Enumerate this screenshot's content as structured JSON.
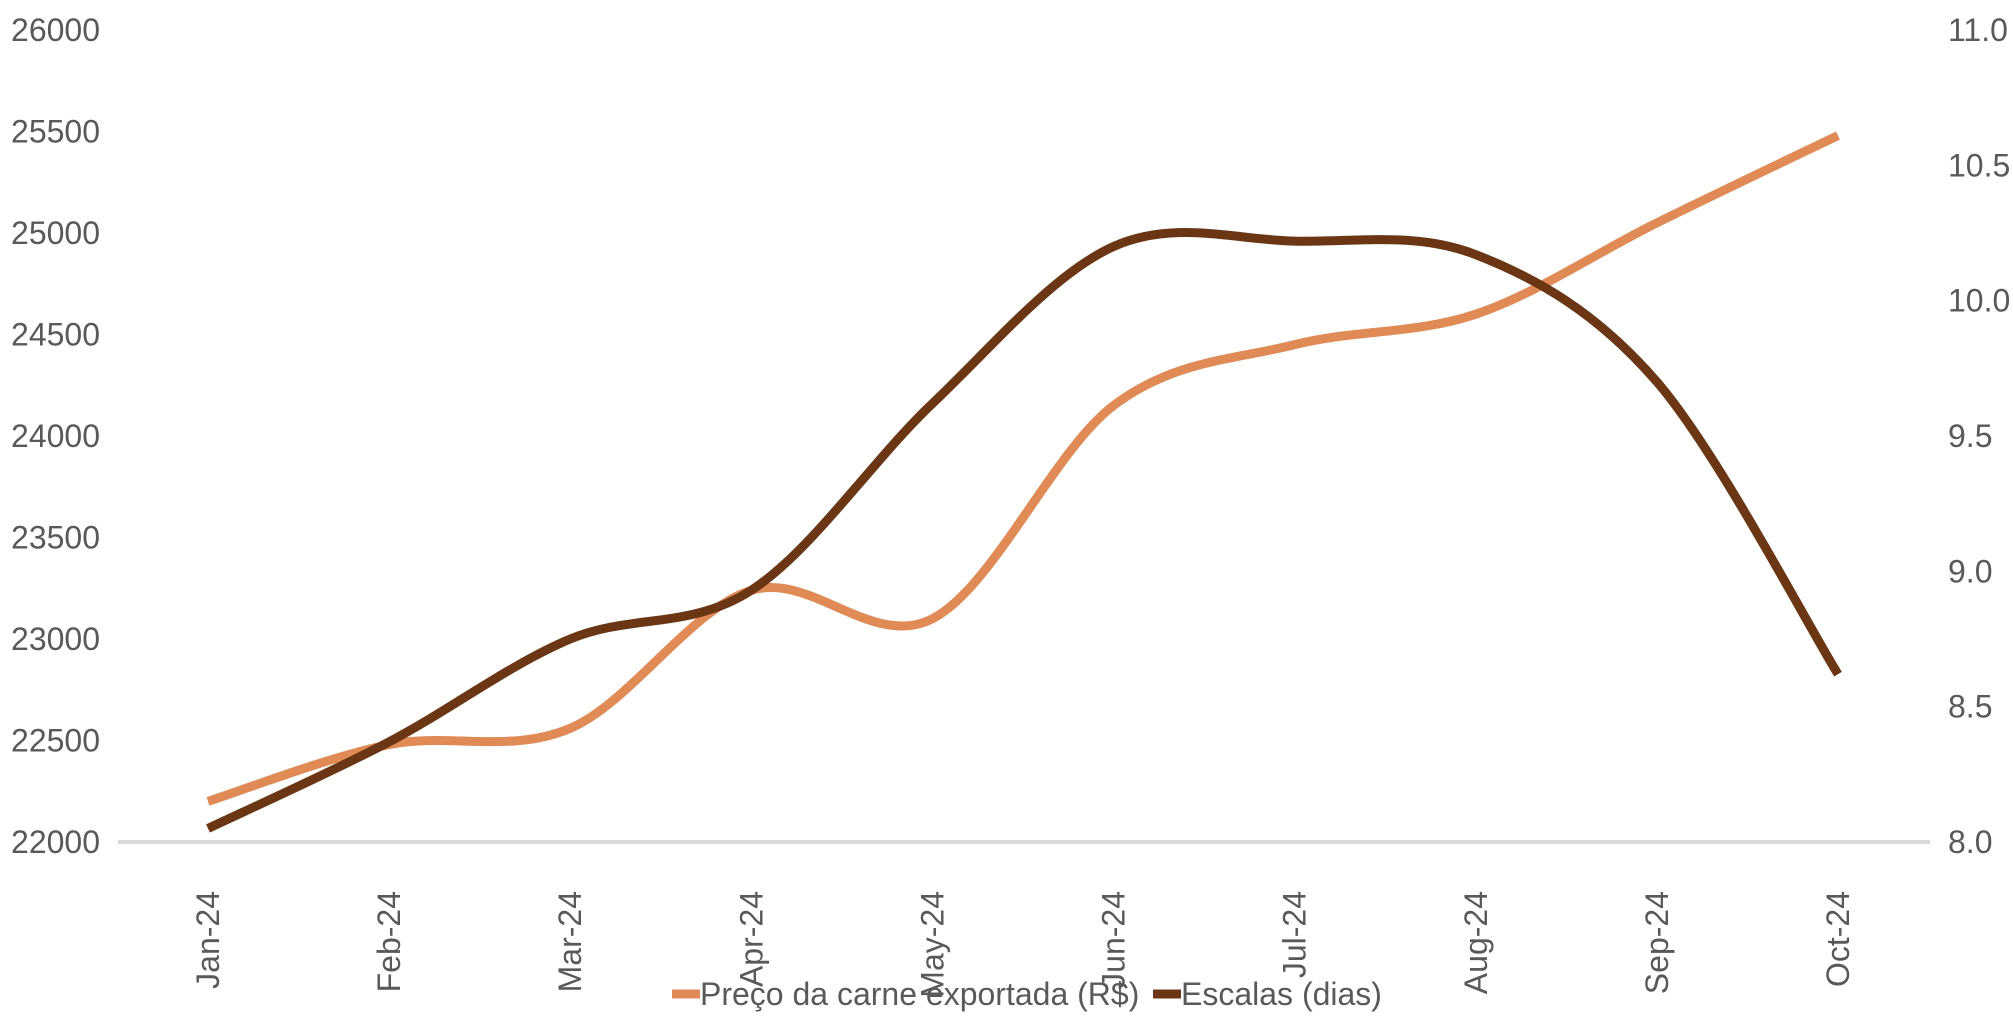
{
  "chart_data": {
    "type": "line",
    "title": "",
    "x": [
      "Jan-24",
      "Feb-24",
      "Mar-24",
      "Apr-24",
      "May-24",
      "Jun-24",
      "Jul-24",
      "Aug-24",
      "Sep-24",
      "Oct-24"
    ],
    "y_left": {
      "ylim": [
        22000,
        26000
      ],
      "ticks": [
        "22000",
        "22500",
        "23000",
        "23500",
        "24000",
        "24500",
        "25000",
        "25500",
        "26000"
      ]
    },
    "y_right": {
      "ylim": [
        8.0,
        11.0
      ],
      "ticks": [
        "8.0",
        "8.5",
        "9.0",
        "9.5",
        "10.0",
        "10.5",
        "11.0"
      ]
    },
    "series": [
      {
        "name": "Preço da carne exportada (R$)",
        "axis": "left",
        "color": "#e08a55",
        "values": [
          22200,
          22480,
          22560,
          23240,
          23100,
          24150,
          24450,
          24600,
          25050,
          25480
        ]
      },
      {
        "name": "Escalas (dias)",
        "axis": "right",
        "color": "#6b3613",
        "values": [
          8.05,
          8.37,
          8.75,
          8.93,
          9.62,
          10.2,
          10.22,
          10.17,
          9.7,
          8.62
        ]
      }
    ],
    "grid": false,
    "legend_position": "bottom"
  }
}
